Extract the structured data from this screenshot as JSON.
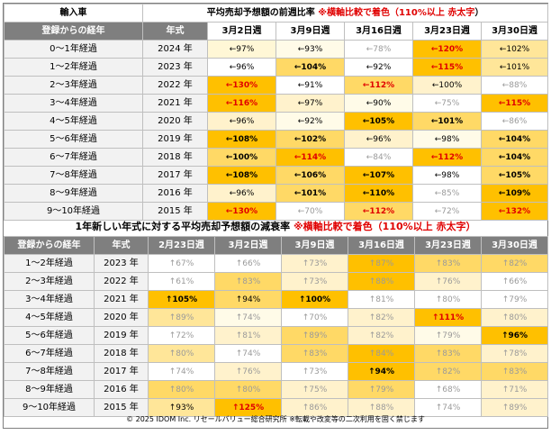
{
  "section1": {
    "corner_label": "輸入車",
    "title": "平均売却予想額の前週比率",
    "note_a": "※横軸比較で着色（110%以上",
    "note_b": "赤太字",
    "note_c": "）",
    "col_reg": "登録からの経年",
    "col_year": "年式",
    "weeks": [
      "3月2日週",
      "3月9日週",
      "3月16日週",
      "3月23日週",
      "3月30日週"
    ],
    "rows": [
      {
        "reg": "0～1年経過",
        "year": "2024 年",
        "cells": [
          {
            "v": "←97%",
            "bg": "#fff7d6",
            "s": "n"
          },
          {
            "v": "←93%",
            "bg": "#fffbe8",
            "s": "n"
          },
          {
            "v": "←78%",
            "bg": "#ffffff",
            "s": "dim"
          },
          {
            "v": "←120%",
            "bg": "#ffc000",
            "s": "red"
          },
          {
            "v": "←102%",
            "bg": "#ffe699",
            "s": "n"
          }
        ]
      },
      {
        "reg": "1～2年経過",
        "year": "2023 年",
        "cells": [
          {
            "v": "←96%",
            "bg": "#ffffff",
            "s": "n"
          },
          {
            "v": "←104%",
            "bg": "#ffd966",
            "s": "big"
          },
          {
            "v": "←92%",
            "bg": "#ffffff",
            "s": "n"
          },
          {
            "v": "←115%",
            "bg": "#ffc000",
            "s": "red"
          },
          {
            "v": "←101%",
            "bg": "#ffe699",
            "s": "n"
          }
        ]
      },
      {
        "reg": "2～3年経過",
        "year": "2022 年",
        "cells": [
          {
            "v": "←130%",
            "bg": "#ffc000",
            "s": "red"
          },
          {
            "v": "←91%",
            "bg": "#ffffff",
            "s": "n"
          },
          {
            "v": "←112%",
            "bg": "#ffd966",
            "s": "red"
          },
          {
            "v": "←100%",
            "bg": "#fff2cc",
            "s": "n"
          },
          {
            "v": "←88%",
            "bg": "#ffffff",
            "s": "dim"
          }
        ]
      },
      {
        "reg": "3～4年経過",
        "year": "2021 年",
        "cells": [
          {
            "v": "←116%",
            "bg": "#ffc000",
            "s": "red"
          },
          {
            "v": "←97%",
            "bg": "#fff2cc",
            "s": "n"
          },
          {
            "v": "←90%",
            "bg": "#fffbe8",
            "s": "n"
          },
          {
            "v": "←75%",
            "bg": "#ffffff",
            "s": "dim"
          },
          {
            "v": "←115%",
            "bg": "#ffc000",
            "s": "red"
          }
        ]
      },
      {
        "reg": "4～5年経過",
        "year": "2020 年",
        "cells": [
          {
            "v": "←96%",
            "bg": "#fff2cc",
            "s": "n"
          },
          {
            "v": "←92%",
            "bg": "#fffbe8",
            "s": "n"
          },
          {
            "v": "←105%",
            "bg": "#ffc000",
            "s": "big"
          },
          {
            "v": "←101%",
            "bg": "#ffd966",
            "s": "big"
          },
          {
            "v": "←86%",
            "bg": "#ffffff",
            "s": "dim"
          }
        ]
      },
      {
        "reg": "5～6年経過",
        "year": "2019 年",
        "cells": [
          {
            "v": "←108%",
            "bg": "#ffc000",
            "s": "big"
          },
          {
            "v": "←102%",
            "bg": "#ffd966",
            "s": "big"
          },
          {
            "v": "←96%",
            "bg": "#fff2cc",
            "s": "n"
          },
          {
            "v": "←98%",
            "bg": "#fffbe8",
            "s": "n"
          },
          {
            "v": "←104%",
            "bg": "#ffd966",
            "s": "big"
          }
        ]
      },
      {
        "reg": "6～7年経過",
        "year": "2018 年",
        "cells": [
          {
            "v": "←100%",
            "bg": "#ffd966",
            "s": "big"
          },
          {
            "v": "←114%",
            "bg": "#ffc000",
            "s": "red"
          },
          {
            "v": "←84%",
            "bg": "#ffffff",
            "s": "dim"
          },
          {
            "v": "←112%",
            "bg": "#ffc000",
            "s": "red"
          },
          {
            "v": "←104%",
            "bg": "#ffd966",
            "s": "big"
          }
        ]
      },
      {
        "reg": "7～8年経過",
        "year": "2017 年",
        "cells": [
          {
            "v": "←108%",
            "bg": "#ffc000",
            "s": "big"
          },
          {
            "v": "←106%",
            "bg": "#ffd966",
            "s": "big"
          },
          {
            "v": "←107%",
            "bg": "#ffc000",
            "s": "big"
          },
          {
            "v": "←98%",
            "bg": "#ffffff",
            "s": "n"
          },
          {
            "v": "←105%",
            "bg": "#ffd966",
            "s": "big"
          }
        ]
      },
      {
        "reg": "8～9年経過",
        "year": "2016 年",
        "cells": [
          {
            "v": "←96%",
            "bg": "#fff2cc",
            "s": "n"
          },
          {
            "v": "←101%",
            "bg": "#ffd966",
            "s": "big"
          },
          {
            "v": "←110%",
            "bg": "#ffc000",
            "s": "big"
          },
          {
            "v": "←85%",
            "bg": "#ffffff",
            "s": "dim"
          },
          {
            "v": "←109%",
            "bg": "#ffc000",
            "s": "big"
          }
        ]
      },
      {
        "reg": "9～10年経過",
        "year": "2015 年",
        "cells": [
          {
            "v": "←130%",
            "bg": "#ffc000",
            "s": "red"
          },
          {
            "v": "←70%",
            "bg": "#ffffff",
            "s": "dim"
          },
          {
            "v": "←112%",
            "bg": "#ffd966",
            "s": "red"
          },
          {
            "v": "←72%",
            "bg": "#ffffff",
            "s": "dim"
          },
          {
            "v": "←132%",
            "bg": "#ffc000",
            "s": "red"
          }
        ]
      }
    ]
  },
  "section2": {
    "title": "1年新しい年式に対する平均売却予想額の減衰率",
    "note": "※横軸比較で着色（110%以上 赤太字）",
    "col_reg": "登録からの経年",
    "col_year": "年式",
    "weeks": [
      "2月23日週",
      "3月2日週",
      "3月9日週",
      "3月16日週",
      "3月23日週",
      "3月30日週"
    ],
    "rows": [
      {
        "reg": "1～2年経過",
        "year": "2023 年",
        "cells": [
          {
            "v": "↑67%",
            "bg": "#ffffff",
            "s": "dim"
          },
          {
            "v": "↑66%",
            "bg": "#ffffff",
            "s": "dim"
          },
          {
            "v": "↑73%",
            "bg": "#fff2cc",
            "s": "dim"
          },
          {
            "v": "↑87%",
            "bg": "#ffc000",
            "s": "dim"
          },
          {
            "v": "↑83%",
            "bg": "#ffd966",
            "s": "dim"
          },
          {
            "v": "↑82%",
            "bg": "#ffd966",
            "s": "dim"
          }
        ]
      },
      {
        "reg": "2～3年経過",
        "year": "2022 年",
        "cells": [
          {
            "v": "↑61%",
            "bg": "#ffffff",
            "s": "dim"
          },
          {
            "v": "↑83%",
            "bg": "#ffd966",
            "s": "dim"
          },
          {
            "v": "↑73%",
            "bg": "#fff2cc",
            "s": "dim"
          },
          {
            "v": "↑88%",
            "bg": "#ffc000",
            "s": "dim"
          },
          {
            "v": "↑76%",
            "bg": "#fff2cc",
            "s": "dim"
          },
          {
            "v": "↑66%",
            "bg": "#ffffff",
            "s": "dim"
          }
        ]
      },
      {
        "reg": "3～4年経過",
        "year": "2021 年",
        "cells": [
          {
            "v": "↑105%",
            "bg": "#ffc000",
            "s": "big"
          },
          {
            "v": "↑94%",
            "bg": "#ffd966",
            "s": "n"
          },
          {
            "v": "↑100%",
            "bg": "#ffc000",
            "s": "big"
          },
          {
            "v": "↑81%",
            "bg": "#ffffff",
            "s": "dim"
          },
          {
            "v": "↑80%",
            "bg": "#ffffff",
            "s": "dim"
          },
          {
            "v": "↑79%",
            "bg": "#ffffff",
            "s": "dim"
          }
        ]
      },
      {
        "reg": "4～5年経過",
        "year": "2020 年",
        "cells": [
          {
            "v": "↑89%",
            "bg": "#ffe699",
            "s": "dim"
          },
          {
            "v": "↑74%",
            "bg": "#fffbe8",
            "s": "dim"
          },
          {
            "v": "↑70%",
            "bg": "#ffffff",
            "s": "dim"
          },
          {
            "v": "↑82%",
            "bg": "#fff2cc",
            "s": "dim"
          },
          {
            "v": "↑111%",
            "bg": "#ffc000",
            "s": "red"
          },
          {
            "v": "↑80%",
            "bg": "#fff2cc",
            "s": "dim"
          }
        ]
      },
      {
        "reg": "5～6年経過",
        "year": "2019 年",
        "cells": [
          {
            "v": "↑72%",
            "bg": "#ffffff",
            "s": "dim"
          },
          {
            "v": "↑81%",
            "bg": "#fff2cc",
            "s": "dim"
          },
          {
            "v": "↑89%",
            "bg": "#ffd966",
            "s": "dim"
          },
          {
            "v": "↑82%",
            "bg": "#fff2cc",
            "s": "dim"
          },
          {
            "v": "↑79%",
            "bg": "#fffbe8",
            "s": "dim"
          },
          {
            "v": "↑96%",
            "bg": "#ffc000",
            "s": "big"
          }
        ]
      },
      {
        "reg": "6～7年経過",
        "year": "2018 年",
        "cells": [
          {
            "v": "↑80%",
            "bg": "#ffe699",
            "s": "dim"
          },
          {
            "v": "↑74%",
            "bg": "#ffffff",
            "s": "dim"
          },
          {
            "v": "↑83%",
            "bg": "#ffd966",
            "s": "dim"
          },
          {
            "v": "↑84%",
            "bg": "#ffc000",
            "s": "dim"
          },
          {
            "v": "↑83%",
            "bg": "#ffd966",
            "s": "dim"
          },
          {
            "v": "↑78%",
            "bg": "#fff2cc",
            "s": "dim"
          }
        ]
      },
      {
        "reg": "7～8年経過",
        "year": "2017 年",
        "cells": [
          {
            "v": "↑74%",
            "bg": "#ffffff",
            "s": "dim"
          },
          {
            "v": "↑76%",
            "bg": "#fff2cc",
            "s": "dim"
          },
          {
            "v": "↑73%",
            "bg": "#ffffff",
            "s": "dim"
          },
          {
            "v": "↑94%",
            "bg": "#ffc000",
            "s": "big"
          },
          {
            "v": "↑82%",
            "bg": "#ffd966",
            "s": "dim"
          },
          {
            "v": "↑83%",
            "bg": "#ffd966",
            "s": "dim"
          }
        ]
      },
      {
        "reg": "8～9年経過",
        "year": "2016 年",
        "cells": [
          {
            "v": "↑80%",
            "bg": "#ffd966",
            "s": "dim"
          },
          {
            "v": "↑80%",
            "bg": "#ffd966",
            "s": "dim"
          },
          {
            "v": "↑75%",
            "bg": "#fff2cc",
            "s": "dim"
          },
          {
            "v": "↑79%",
            "bg": "#ffd966",
            "s": "dim"
          },
          {
            "v": "↑68%",
            "bg": "#ffffff",
            "s": "dim"
          },
          {
            "v": "↑71%",
            "bg": "#fff2cc",
            "s": "dim"
          }
        ]
      },
      {
        "reg": "9～10年経過",
        "year": "2015 年",
        "cells": [
          {
            "v": "↑93%",
            "bg": "#ffe699",
            "s": "n"
          },
          {
            "v": "↑125%",
            "bg": "#ffc000",
            "s": "red"
          },
          {
            "v": "↑86%",
            "bg": "#fff2cc",
            "s": "dim"
          },
          {
            "v": "↑88%",
            "bg": "#fff2cc",
            "s": "dim"
          },
          {
            "v": "↑74%",
            "bg": "#ffffff",
            "s": "dim"
          },
          {
            "v": "↑89%",
            "bg": "#fff2cc",
            "s": "dim"
          }
        ]
      }
    ]
  },
  "footer": "© 2025 IDOM Inc. リセールバリュー総合研究所 ※転載や改変等の二次利用を固く禁じます"
}
